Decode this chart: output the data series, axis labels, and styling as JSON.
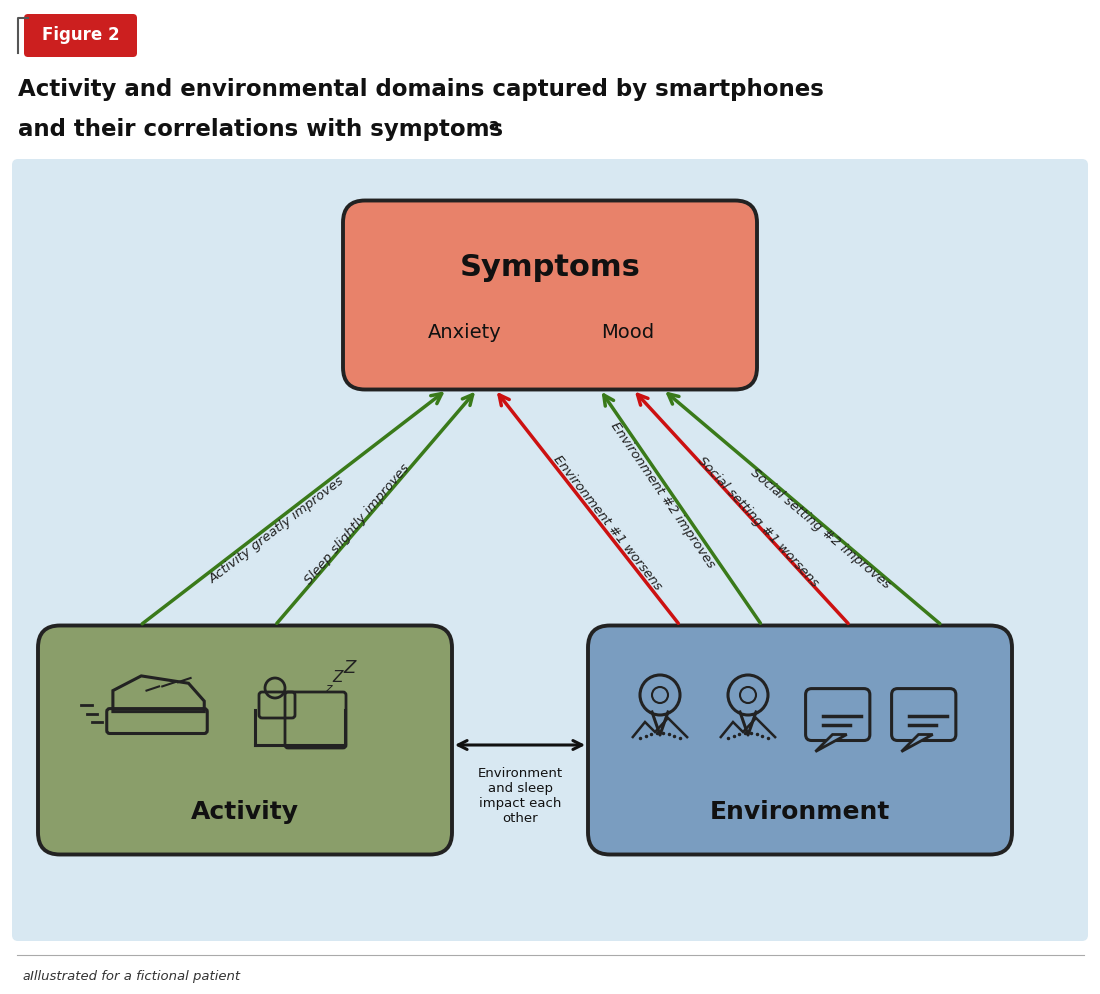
{
  "title_line1": "Activity and environmental domains captured by smartphones",
  "title_line2": "and their correlations with symptoms",
  "title_superscript": "a",
  "figure_label": "Figure 2",
  "figure_label_bg": "#CC1F1F",
  "bg_color": "#FFFFFF",
  "panel_bg_color": "#D8E8F2",
  "symptoms_box_color": "#E8826A",
  "symptoms_box_edge": "#222222",
  "symptoms_label": "Symptoms",
  "anxiety_label": "Anxiety",
  "mood_label": "Mood",
  "activity_box_color": "#8A9E6A",
  "activity_box_edge": "#222222",
  "activity_label": "Activity",
  "environment_box_color": "#7A9DC0",
  "environment_box_edge": "#222222",
  "environment_label": "Environment",
  "green_color": "#3A7A1A",
  "red_color": "#CC1111",
  "arrow_label_color": "#222222",
  "footnote_superscript": "a",
  "footnote_text": "Illustrated for a fictional patient"
}
